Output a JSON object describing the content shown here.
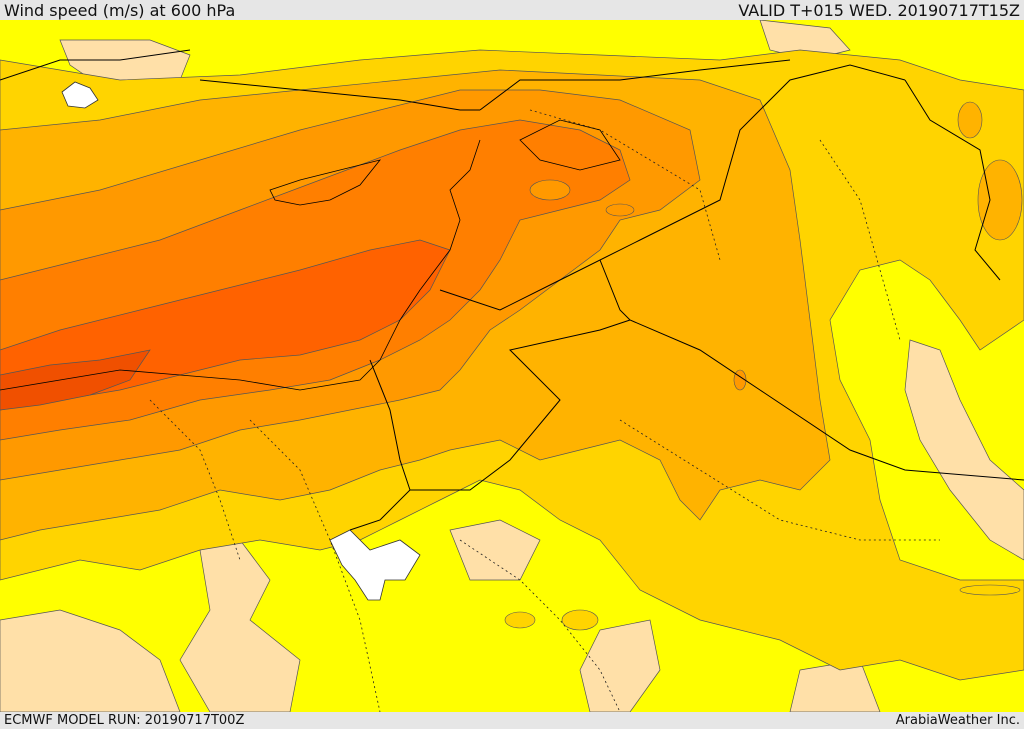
{
  "header": {
    "title": "Wind speed (m/s) at 600 hPa",
    "valid": "VALID T+015 WED. 20190717T15Z"
  },
  "footer": {
    "model_run": "ECMWF MODEL RUN: 20190717T00Z",
    "provider": "ArabiaWeather Inc."
  },
  "colors": {
    "band_lowest": "#ffff00",
    "band_light": "#ffe0a8",
    "band_2": "#ffd400",
    "band_3": "#ffb300",
    "band_4": "#ff9900",
    "band_5": "#ff7f00",
    "band_6": "#ff6200",
    "band_7": "#f05000",
    "water_white": "#ffffff",
    "contour_line": "#555555",
    "border_line": "#000000"
  }
}
